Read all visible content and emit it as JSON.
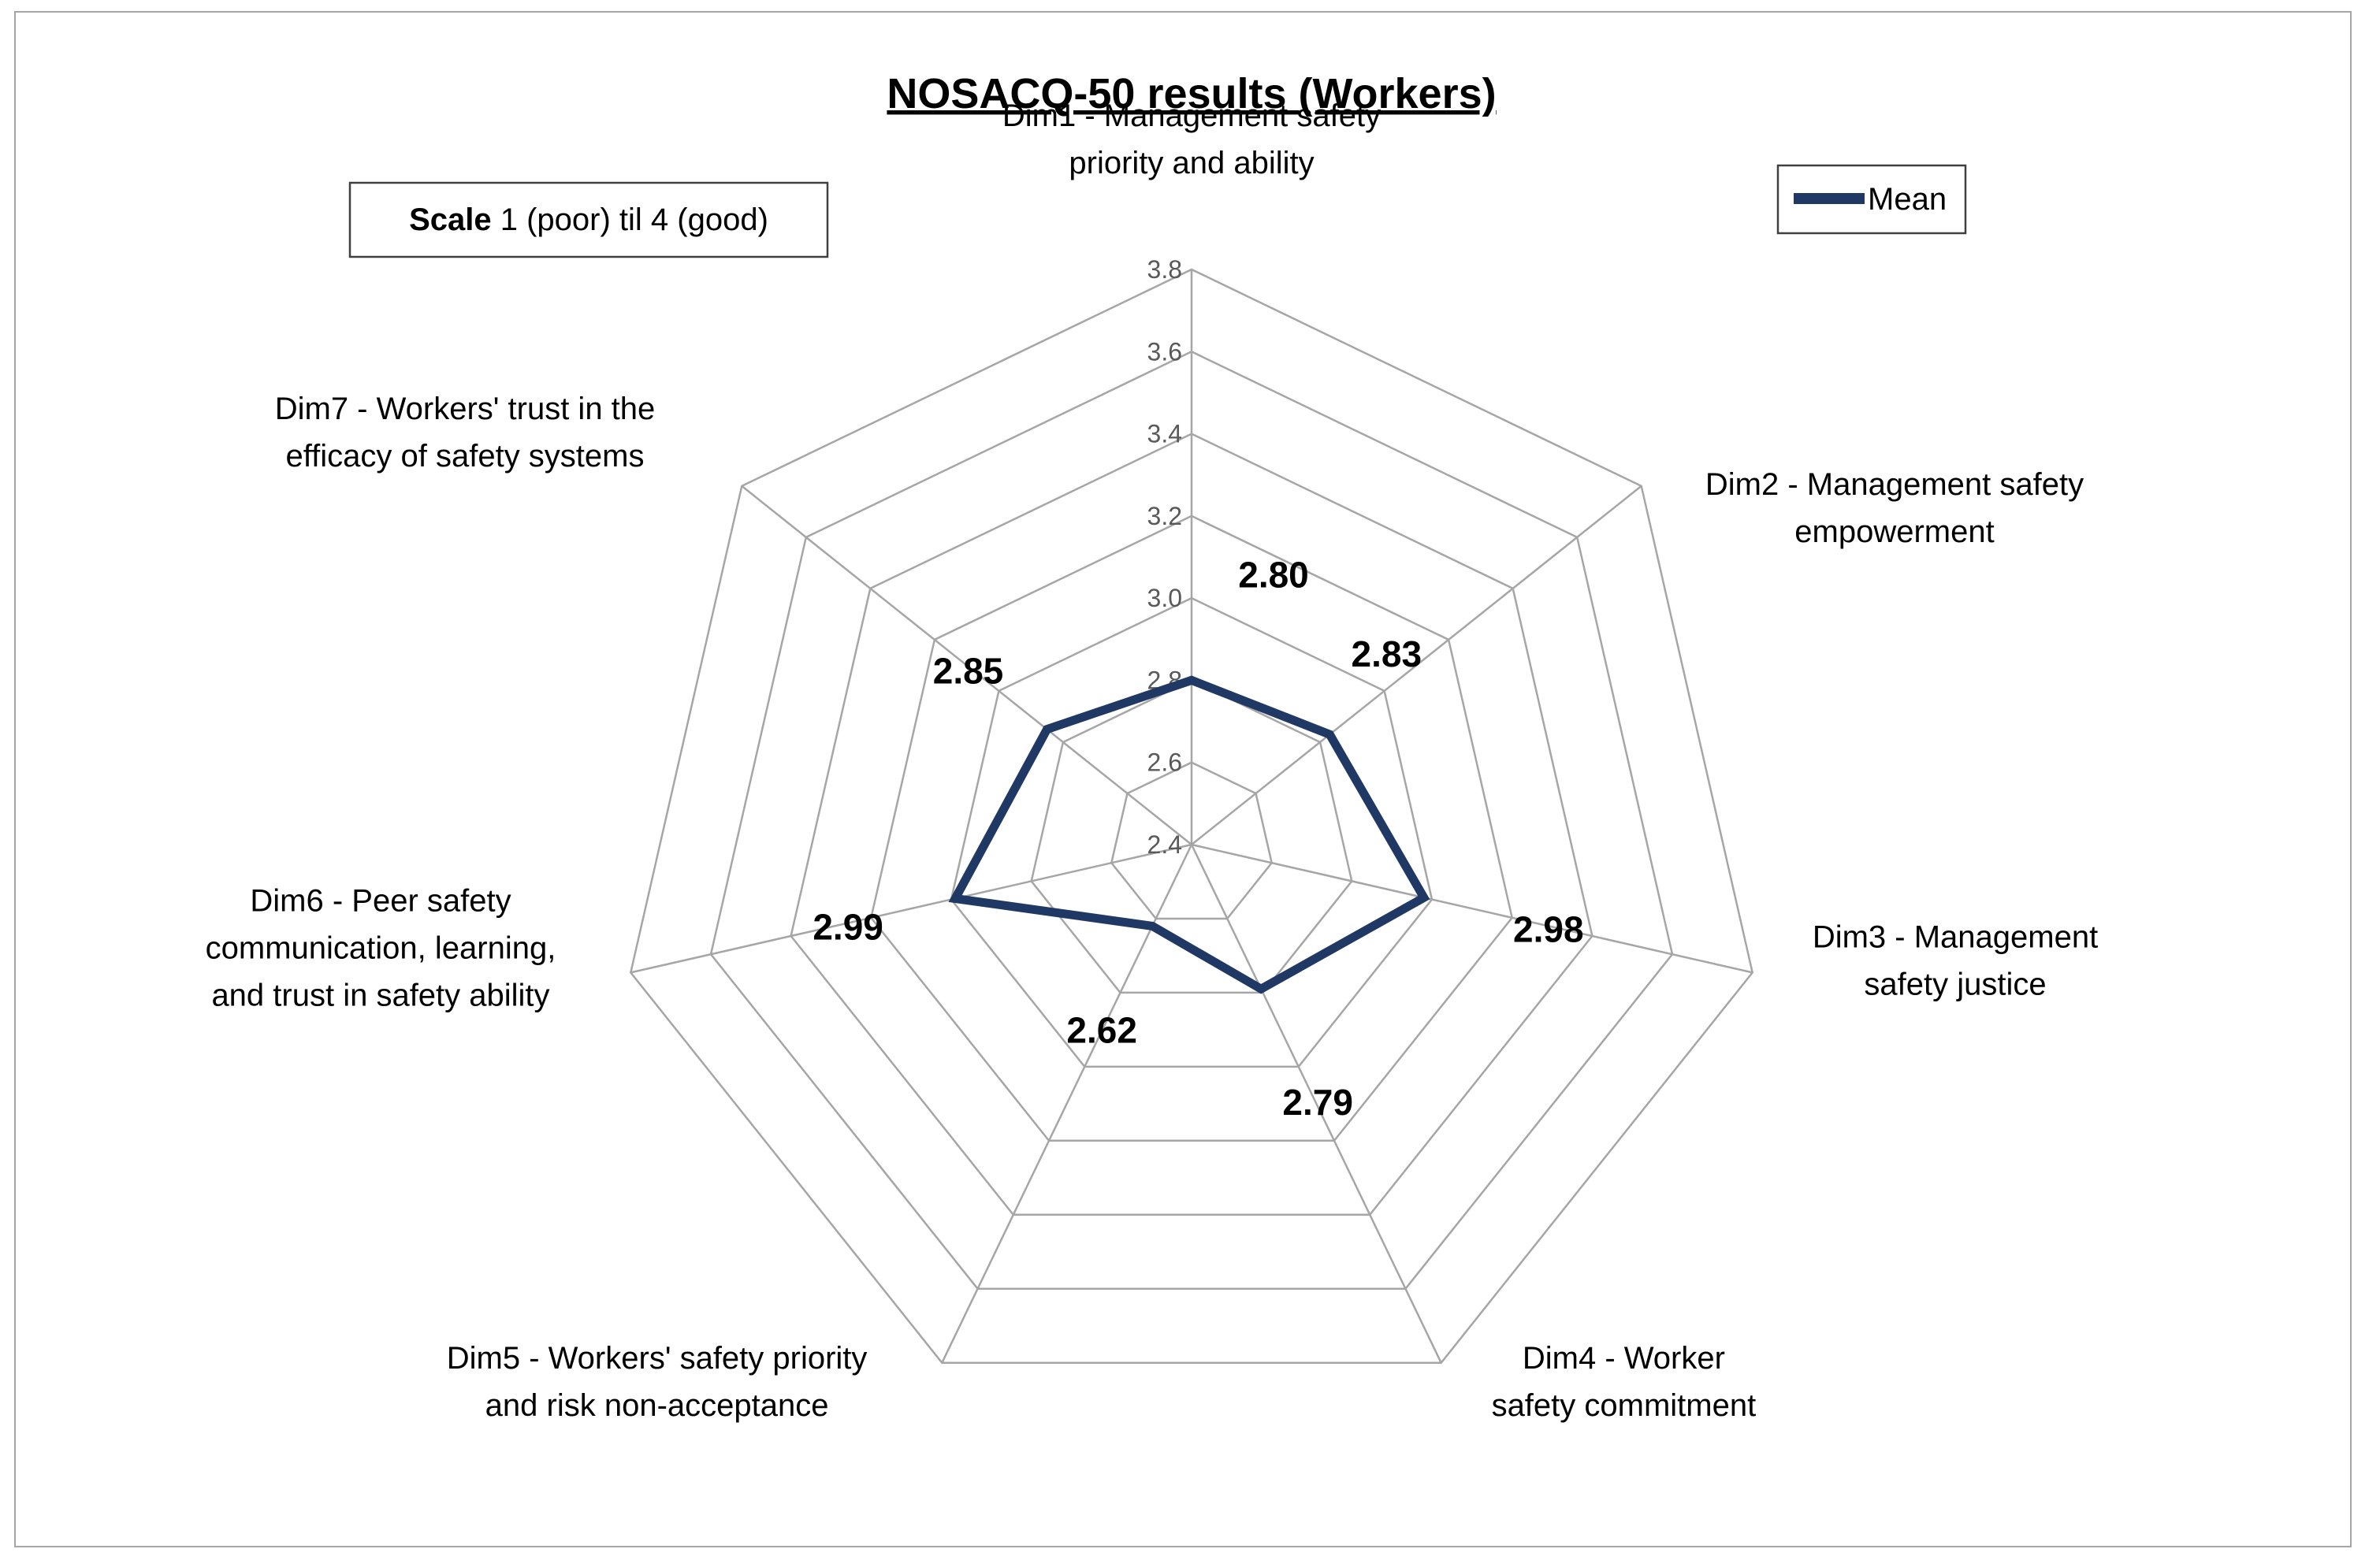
{
  "chart_data": {
    "type": "radar",
    "title": "NOSACQ-50 results (Workers)",
    "note": {
      "bold": "Scale",
      "rest": " 1 (poor) til 4 (good)"
    },
    "axes": [
      [
        "Dim1 - Management safety",
        "priority and ability"
      ],
      [
        "Dim2 - Management safety",
        "empowerment"
      ],
      [
        "Dim3 - Management",
        "safety justice"
      ],
      [
        "Dim4 - Worker",
        "safety commitment"
      ],
      [
        "Dim5 - Workers' safety priority",
        "and risk non-acceptance"
      ],
      [
        "Dim6 - Peer safety",
        "communication, learning,",
        "and trust in safety ability"
      ],
      [
        "Dim7 - Workers' trust in the",
        "efficacy of safety systems"
      ]
    ],
    "series": [
      {
        "name": "Mean",
        "color": "#1f3864",
        "values": [
          2.8,
          2.83,
          2.98,
          2.79,
          2.62,
          2.99,
          2.85
        ],
        "labels": [
          "2.80",
          "2.83",
          "2.98",
          "2.79",
          "2.62",
          "2.99",
          "2.85"
        ]
      }
    ],
    "rmin": 2.4,
    "rmax": 3.8,
    "ticks": [
      2.4,
      2.6,
      2.8,
      3.0,
      3.2,
      3.4,
      3.6,
      3.8
    ],
    "tick_labels": [
      "2.4",
      "2.6",
      "2.8",
      "3.0",
      "3.2",
      "3.4",
      "3.6",
      "3.8"
    ],
    "legend_position": "top-right",
    "grid_color": "#a6a6a6"
  }
}
